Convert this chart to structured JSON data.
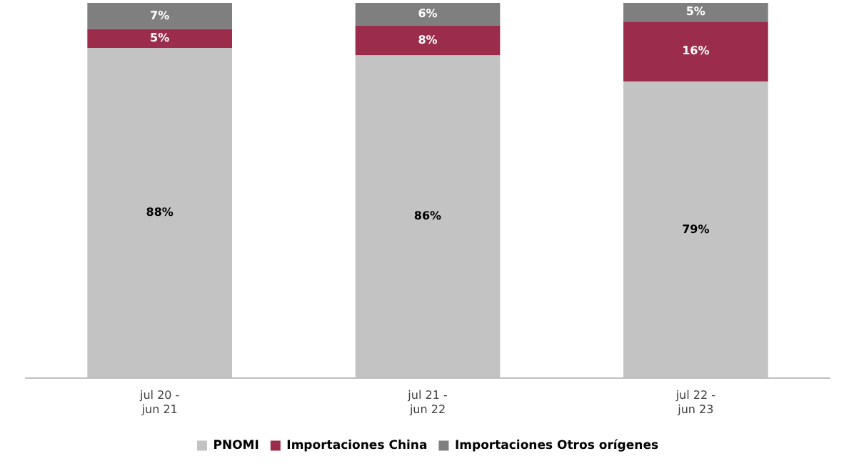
{
  "chart_data": {
    "type": "bar",
    "stacked": true,
    "categories": [
      "jul 20 -\njun 21",
      "jul 21 -\njun 22",
      "jul 22 -\njun 23"
    ],
    "series": [
      {
        "name": "PNOMI",
        "color": "#c3c3c3",
        "values": [
          88,
          86,
          79
        ],
        "value_labels": [
          "88%",
          "86%",
          "79%"
        ]
      },
      {
        "name": "Importaciones China",
        "color": "#9b2c4c",
        "values": [
          5,
          8,
          16
        ],
        "value_labels": [
          "5%",
          "8%",
          "16%"
        ]
      },
      {
        "name": "Importaciones Otros orígenes",
        "color": "#7f7f7f",
        "values": [
          7,
          6,
          5
        ],
        "value_labels": [
          "7%",
          "6%",
          "5%"
        ]
      }
    ],
    "tick_labels": "x",
    "legend": "bottom",
    "grid": false
  }
}
